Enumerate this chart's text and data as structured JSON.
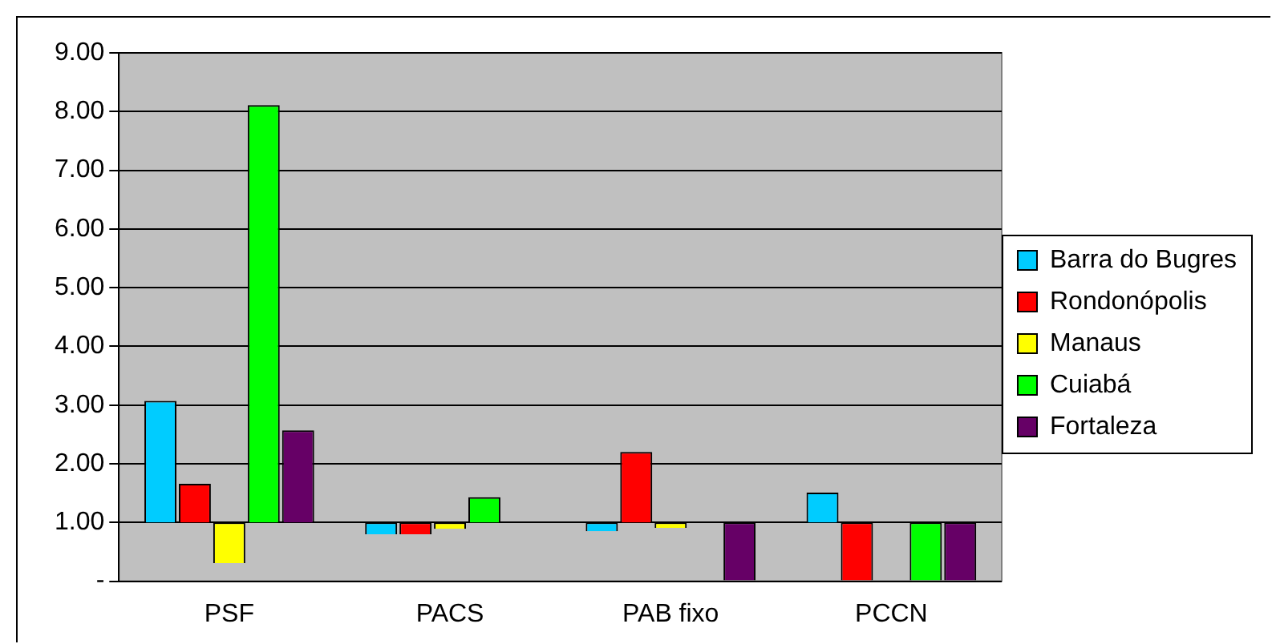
{
  "chart_data": {
    "type": "bar",
    "categories": [
      "PSF",
      "PACS",
      "PAB fixo",
      "PCCN"
    ],
    "series": [
      {
        "name": "Barra do Bugres",
        "color": "#00ccff",
        "base": [
          1,
          1,
          1,
          1
        ],
        "values": [
          2.07,
          -0.2,
          -0.15,
          0.51
        ]
      },
      {
        "name": "Rondonópolis",
        "color": "#ff0000",
        "base": [
          1,
          1,
          1,
          1
        ],
        "values": [
          0.66,
          -0.2,
          1.2,
          -1
        ]
      },
      {
        "name": "Manaus",
        "color": "#ffff00",
        "base": [
          1,
          1,
          1,
          null
        ],
        "values": [
          -0.69,
          -0.11,
          -0.09,
          null
        ]
      },
      {
        "name": "Cuiabá",
        "color": "#00ff00",
        "base": [
          1,
          1,
          null,
          1
        ],
        "values": [
          7.11,
          0.43,
          null,
          -1
        ]
      },
      {
        "name": "Fortaleza",
        "color": "#660066",
        "base": [
          1,
          null,
          1,
          1
        ],
        "values": [
          1.57,
          null,
          -1,
          -1
        ]
      }
    ],
    "ylim": [
      0,
      9
    ],
    "yticks": [
      {
        "value": 0,
        "label": "-"
      },
      {
        "value": 1,
        "label": "1.00"
      },
      {
        "value": 2,
        "label": "2.00"
      },
      {
        "value": 3,
        "label": "3.00"
      },
      {
        "value": 4,
        "label": "4.00"
      },
      {
        "value": 5,
        "label": "5.00"
      },
      {
        "value": 6,
        "label": "6.00"
      },
      {
        "value": 7,
        "label": "7.00"
      },
      {
        "value": 8,
        "label": "8.00"
      },
      {
        "value": 9,
        "label": "9.00"
      }
    ],
    "grid": "y",
    "legend": "right"
  }
}
